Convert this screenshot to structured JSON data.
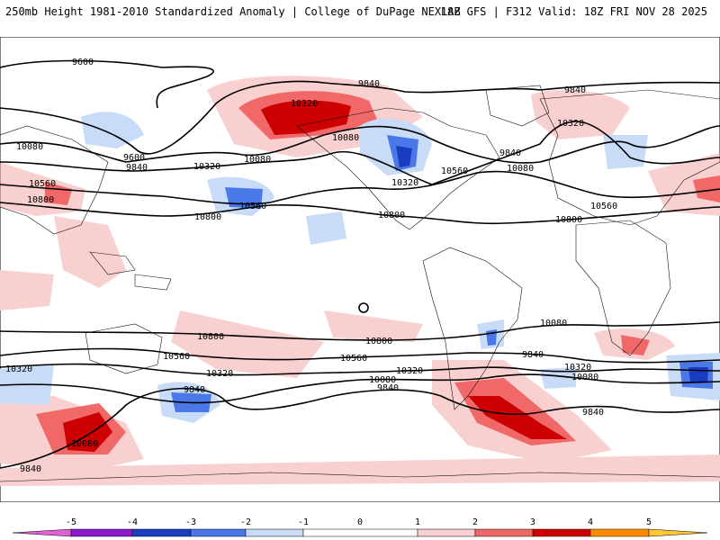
{
  "header": {
    "left": "250mb Height 1981-2010 Standardized Anomaly | College of DuPage NEXLAB",
    "right": "18Z GFS | F312 Valid: 18Z FRI NOV 28 2025"
  },
  "contour_labels": [
    "9600",
    "9840",
    "10320",
    "9840",
    "10080",
    "9600",
    "9840",
    "10320",
    "10080",
    "10320",
    "9840",
    "10080",
    "10560",
    "10320",
    "10080",
    "10560",
    "10800",
    "10560",
    "10800",
    "10800",
    "10560",
    "10800",
    "10800",
    "10560",
    "10320",
    "10320",
    "10560",
    "10800",
    "10320",
    "10080",
    "9840",
    "9840",
    "10080",
    "9840",
    "10320",
    "10080",
    "9840",
    "10080",
    "9840"
  ],
  "colors": {
    "n5": "#e060d8",
    "n4": "#8a18c8",
    "n3": "#1a3cc0",
    "n2": "#4a78e8",
    "n1": "#c8dcf8",
    "zero": "#ffffff",
    "p1": "#f8d0d0",
    "p2": "#f06868",
    "p3": "#cc0000",
    "p4": "#ff8c00",
    "p5": "#ffc830"
  },
  "colorbar": {
    "ticks": [
      "-5",
      "-4",
      "-3",
      "-2",
      "-1",
      "0",
      "1",
      "2",
      "3",
      "4",
      "5"
    ]
  }
}
